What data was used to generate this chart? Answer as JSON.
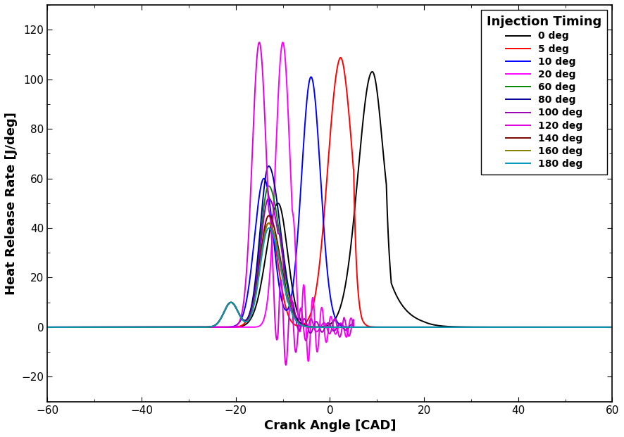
{
  "legend_title": "Injection Timing",
  "xlabel": "Crank Angle [CAD]",
  "ylabel": "Heat Release Rate [J/deg]",
  "xlim": [
    -60,
    60
  ],
  "ylim": [
    -30,
    130
  ],
  "xticks": [
    -60,
    -40,
    -20,
    0,
    20,
    40,
    60
  ],
  "yticks": [
    -20,
    0,
    20,
    40,
    60,
    80,
    100,
    120
  ],
  "series": [
    {
      "label": "0 deg",
      "color": "#000000"
    },
    {
      "label": "5 deg",
      "color": "#ff0000"
    },
    {
      "label": "10 deg",
      "color": "#0000ff"
    },
    {
      "label": "20 deg",
      "color": "#ff00ff"
    },
    {
      "label": "60 deg",
      "color": "#008800"
    },
    {
      "label": "80 deg",
      "color": "#000099"
    },
    {
      "label": "100 deg",
      "color": "#9900bb"
    },
    {
      "label": "120 deg",
      "color": "#dd00dd"
    },
    {
      "label": "140 deg",
      "color": "#7b0000"
    },
    {
      "label": "160 deg",
      "color": "#808000"
    },
    {
      "label": "180 deg",
      "color": "#0099bb"
    }
  ],
  "background_color": "#ffffff",
  "legend_title_fontsize": 13,
  "legend_fontsize": 10,
  "axis_label_fontsize": 13,
  "tick_fontsize": 11,
  "linewidth": 1.4
}
